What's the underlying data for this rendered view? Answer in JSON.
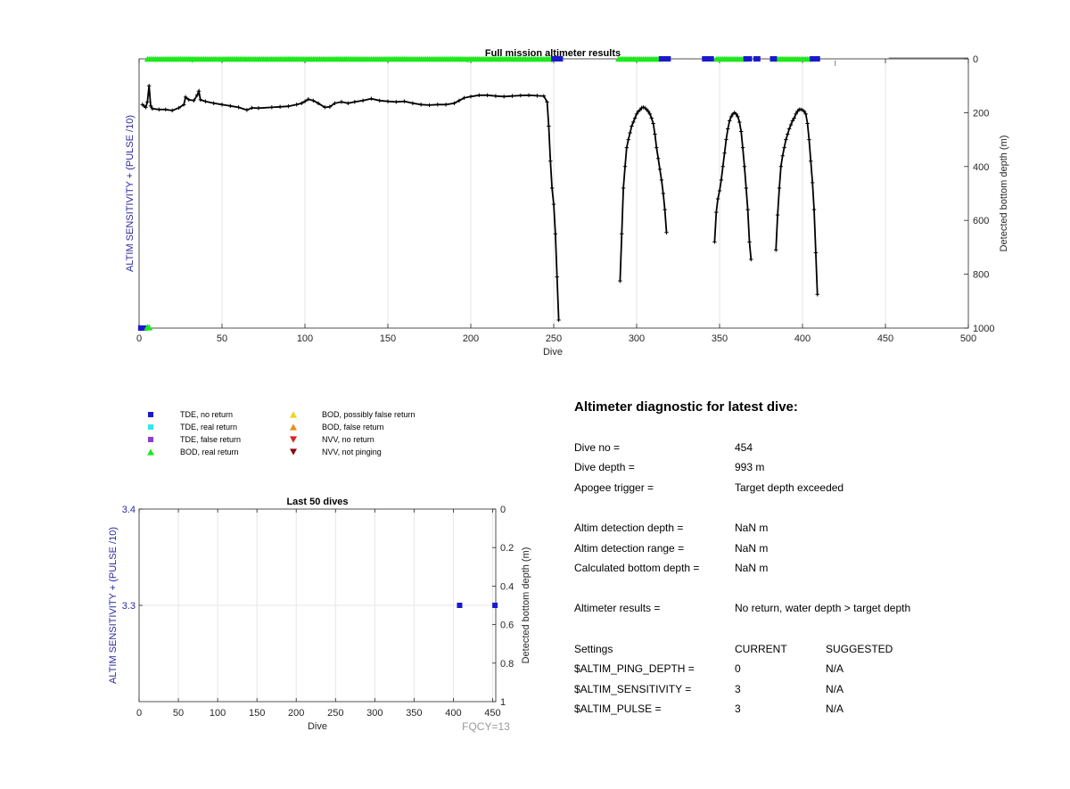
{
  "colors": {
    "tde_no_return": "#1a1acc",
    "tde_real_return": "#33e6f0",
    "tde_false_return": "#8a3fd0",
    "bod_real_return": "#1ee81e",
    "bod_possibly_false": "#f2d21a",
    "bod_false_return": "#f08c1a",
    "nvv_no_return": "#e02020",
    "nvv_not_pinging": "#8a0a0a",
    "bottom_line": "#000000",
    "left_axis_label": "#2a2aa0",
    "grid": "#e6e6e6"
  },
  "legend": {
    "items": [
      {
        "label": "TDE, no return",
        "marker": "square",
        "color_key": "tde_no_return"
      },
      {
        "label": "TDE, real return",
        "marker": "square",
        "color_key": "tde_real_return"
      },
      {
        "label": "TDE, false return",
        "marker": "square",
        "color_key": "tde_false_return"
      },
      {
        "label": "BOD, real return",
        "marker": "triangle-up",
        "color_key": "bod_real_return"
      },
      {
        "label": "BOD, possibly false return",
        "marker": "triangle-up",
        "color_key": "bod_possibly_false"
      },
      {
        "label": "BOD, false return",
        "marker": "triangle-up",
        "color_key": "bod_false_return"
      },
      {
        "label": "NVV, no return",
        "marker": "triangle-down",
        "color_key": "nvv_no_return"
      },
      {
        "label": "NVV, not pinging",
        "marker": "triangle-down",
        "color_key": "nvv_not_pinging"
      }
    ]
  },
  "chart_data": [
    {
      "id": "full-mission",
      "type": "line",
      "title": "Full mission altimeter results",
      "xlabel": "Dive",
      "ylabel_left": "ALTIM SENSITIVITY + (PULSE /10)",
      "ylabel_right": "Detected bottom depth (m)",
      "xlim": [
        0,
        500
      ],
      "xticks": [
        0,
        50,
        100,
        150,
        200,
        250,
        300,
        350,
        400,
        450,
        500
      ],
      "ylim_right": [
        0,
        1000
      ],
      "yticks_right": [
        0,
        200,
        400,
        600,
        800,
        1000
      ],
      "right_axis_reversed": true,
      "grid": "vertical",
      "bottom_depth_series": {
        "name": "",
        "segments": [
          [
            [
              2,
              170
            ],
            [
              3,
              175
            ],
            [
              4,
              180
            ],
            [
              5,
              160
            ],
            [
              6,
              100
            ],
            [
              7,
              175
            ],
            [
              8,
              185
            ],
            [
              12,
              188
            ],
            [
              16,
              188
            ],
            [
              20,
              192
            ],
            [
              24,
              182
            ],
            [
              27,
              170
            ],
            [
              28,
              142
            ],
            [
              30,
              152
            ],
            [
              33,
              155
            ],
            [
              35,
              135
            ],
            [
              36,
              120
            ],
            [
              37,
              152
            ],
            [
              40,
              158
            ],
            [
              45,
              165
            ],
            [
              50,
              170
            ],
            [
              55,
              175
            ],
            [
              60,
              180
            ],
            [
              65,
              190
            ],
            [
              68,
              182
            ],
            [
              72,
              183
            ],
            [
              80,
              180
            ],
            [
              85,
              178
            ],
            [
              90,
              176
            ],
            [
              95,
              170
            ],
            [
              98,
              165
            ],
            [
              100,
              158
            ],
            [
              102,
              150
            ],
            [
              105,
              155
            ],
            [
              108,
              165
            ],
            [
              112,
              180
            ],
            [
              115,
              178
            ],
            [
              118,
              165
            ],
            [
              122,
              160
            ],
            [
              126,
              165
            ],
            [
              130,
              160
            ],
            [
              135,
              155
            ],
            [
              140,
              148
            ],
            [
              145,
              155
            ],
            [
              150,
              158
            ],
            [
              155,
              160
            ],
            [
              160,
              158
            ],
            [
              165,
              165
            ],
            [
              170,
              170
            ],
            [
              175,
              172
            ],
            [
              180,
              170
            ],
            [
              185,
              170
            ],
            [
              190,
              165
            ],
            [
              193,
              155
            ],
            [
              196,
              145
            ],
            [
              200,
              140
            ],
            [
              205,
              135
            ],
            [
              210,
              135
            ],
            [
              215,
              138
            ],
            [
              220,
              140
            ],
            [
              225,
              138
            ],
            [
              230,
              136
            ],
            [
              235,
              135
            ],
            [
              240,
              137
            ],
            [
              244,
              138
            ],
            [
              246,
              160
            ],
            [
              247,
              250
            ],
            [
              248,
              380
            ],
            [
              249,
              480
            ],
            [
              250,
              540
            ],
            [
              251,
              650
            ],
            [
              252,
              810
            ],
            [
              253,
              970
            ]
          ],
          [
            [
              290,
              825
            ],
            [
              291,
              650
            ],
            [
              292,
              480
            ],
            [
              293,
              400
            ],
            [
              294,
              330
            ],
            [
              295,
              300
            ],
            [
              296,
              275
            ],
            [
              297,
              250
            ],
            [
              298,
              235
            ],
            [
              299,
              220
            ],
            [
              300,
              205
            ],
            [
              301,
              195
            ],
            [
              302,
              190
            ],
            [
              303,
              182
            ],
            [
              304,
              180
            ],
            [
              305,
              182
            ],
            [
              306,
              188
            ],
            [
              307,
              195
            ],
            [
              308,
              205
            ],
            [
              309,
              220
            ],
            [
              310,
              240
            ],
            [
              311,
              280
            ],
            [
              312,
              330
            ],
            [
              313,
              370
            ],
            [
              314,
              410
            ],
            [
              315,
              450
            ],
            [
              316,
              500
            ],
            [
              317,
              560
            ],
            [
              318,
              645
            ]
          ],
          [
            [
              347,
              680
            ],
            [
              348,
              570
            ],
            [
              349,
              520
            ],
            [
              350,
              490
            ],
            [
              351,
              450
            ],
            [
              352,
              400
            ],
            [
              353,
              350
            ],
            [
              354,
              300
            ],
            [
              355,
              260
            ],
            [
              356,
              230
            ],
            [
              357,
              215
            ],
            [
              358,
              205
            ],
            [
              359,
              200
            ],
            [
              360,
              205
            ],
            [
              361,
              215
            ],
            [
              362,
              235
            ],
            [
              363,
              270
            ],
            [
              364,
              330
            ],
            [
              365,
              400
            ],
            [
              366,
              480
            ],
            [
              367,
              560
            ],
            [
              368,
              680
            ],
            [
              369,
              745
            ]
          ],
          [
            [
              384,
              710
            ],
            [
              385,
              580
            ],
            [
              386,
              480
            ],
            [
              387,
              400
            ],
            [
              388,
              360
            ],
            [
              389,
              330
            ],
            [
              390,
              300
            ],
            [
              391,
              280
            ],
            [
              392,
              260
            ],
            [
              393,
              245
            ],
            [
              394,
              230
            ],
            [
              395,
              220
            ],
            [
              396,
              205
            ],
            [
              397,
              195
            ],
            [
              398,
              188
            ],
            [
              399,
              188
            ],
            [
              400,
              190
            ],
            [
              401,
              195
            ],
            [
              402,
              205
            ],
            [
              403,
              240
            ],
            [
              404,
              300
            ],
            [
              405,
              380
            ],
            [
              406,
              460
            ],
            [
              407,
              560
            ],
            [
              408,
              720
            ],
            [
              409,
              875
            ]
          ]
        ]
      },
      "bod_real_return_top_ranges": [
        [
          5,
          250
        ],
        [
          289,
          315
        ],
        [
          348,
          366
        ],
        [
          382,
          406
        ]
      ],
      "bod_real_return_dips": [
        32,
        198
      ],
      "tde_no_return_top": [
        250,
        251,
        252,
        253,
        254,
        315,
        316,
        317,
        318,
        319,
        341,
        342,
        343,
        344,
        345,
        366,
        367,
        368,
        372,
        373,
        382,
        383,
        406,
        407,
        408,
        409
      ],
      "tde_no_return_bottom": [
        1,
        3
      ],
      "bod_real_return_bottom": [
        5,
        6
      ],
      "dashed_line_x": [
        452,
        500
      ],
      "dashed_line_depth": 0
    },
    {
      "id": "last-50",
      "type": "scatter",
      "title": "Last 50 dives",
      "xlabel": "Dive",
      "ylabel_left": "ALTIM SENSITIVITY + (PULSE /10)",
      "ylabel_right": "Detected bottom depth (m)",
      "xlim": [
        0,
        454
      ],
      "xticks": [
        0,
        50,
        100,
        150,
        200,
        250,
        300,
        350,
        400,
        450
      ],
      "ylim_left": [
        3.2,
        3.4
      ],
      "yticks_left": [
        3.3,
        3.4
      ],
      "ylim_right": [
        0,
        1
      ],
      "yticks_right": [
        0,
        0.2,
        0.4,
        0.6,
        0.8,
        1
      ],
      "right_axis_reversed": true,
      "grid": "both",
      "tde_no_return_points": [
        [
          408,
          3.3
        ],
        [
          453,
          3.3
        ]
      ]
    }
  ],
  "fqcy_label": "FQCY=13",
  "diagnostic": {
    "title": "Altimeter diagnostic for latest dive:",
    "rows": [
      {
        "label": "Dive no =",
        "value": "454"
      },
      {
        "label": "Dive depth =",
        "value": "993 m"
      },
      {
        "label": "Apogee trigger =",
        "value": "Target depth exceeded"
      },
      {
        "label": "Altim detection depth =",
        "value": "NaN m"
      },
      {
        "label": "Altim detection range =",
        "value": "NaN m"
      },
      {
        "label": "Calculated bottom depth =",
        "value": "NaN m"
      },
      {
        "label": "Altimeter results =",
        "value": "No return, water depth > target depth"
      }
    ],
    "settings": {
      "header": {
        "label": "Settings",
        "current": "CURRENT",
        "suggested": "SUGGESTED"
      },
      "rows": [
        {
          "label": "$ALTIM_PING_DEPTH =",
          "current": "0",
          "suggested": "N/A"
        },
        {
          "label": "$ALTIM_SENSITIVITY =",
          "current": "3",
          "suggested": "N/A"
        },
        {
          "label": "$ALTIM_PULSE =",
          "current": "3",
          "suggested": "N/A"
        }
      ]
    }
  }
}
